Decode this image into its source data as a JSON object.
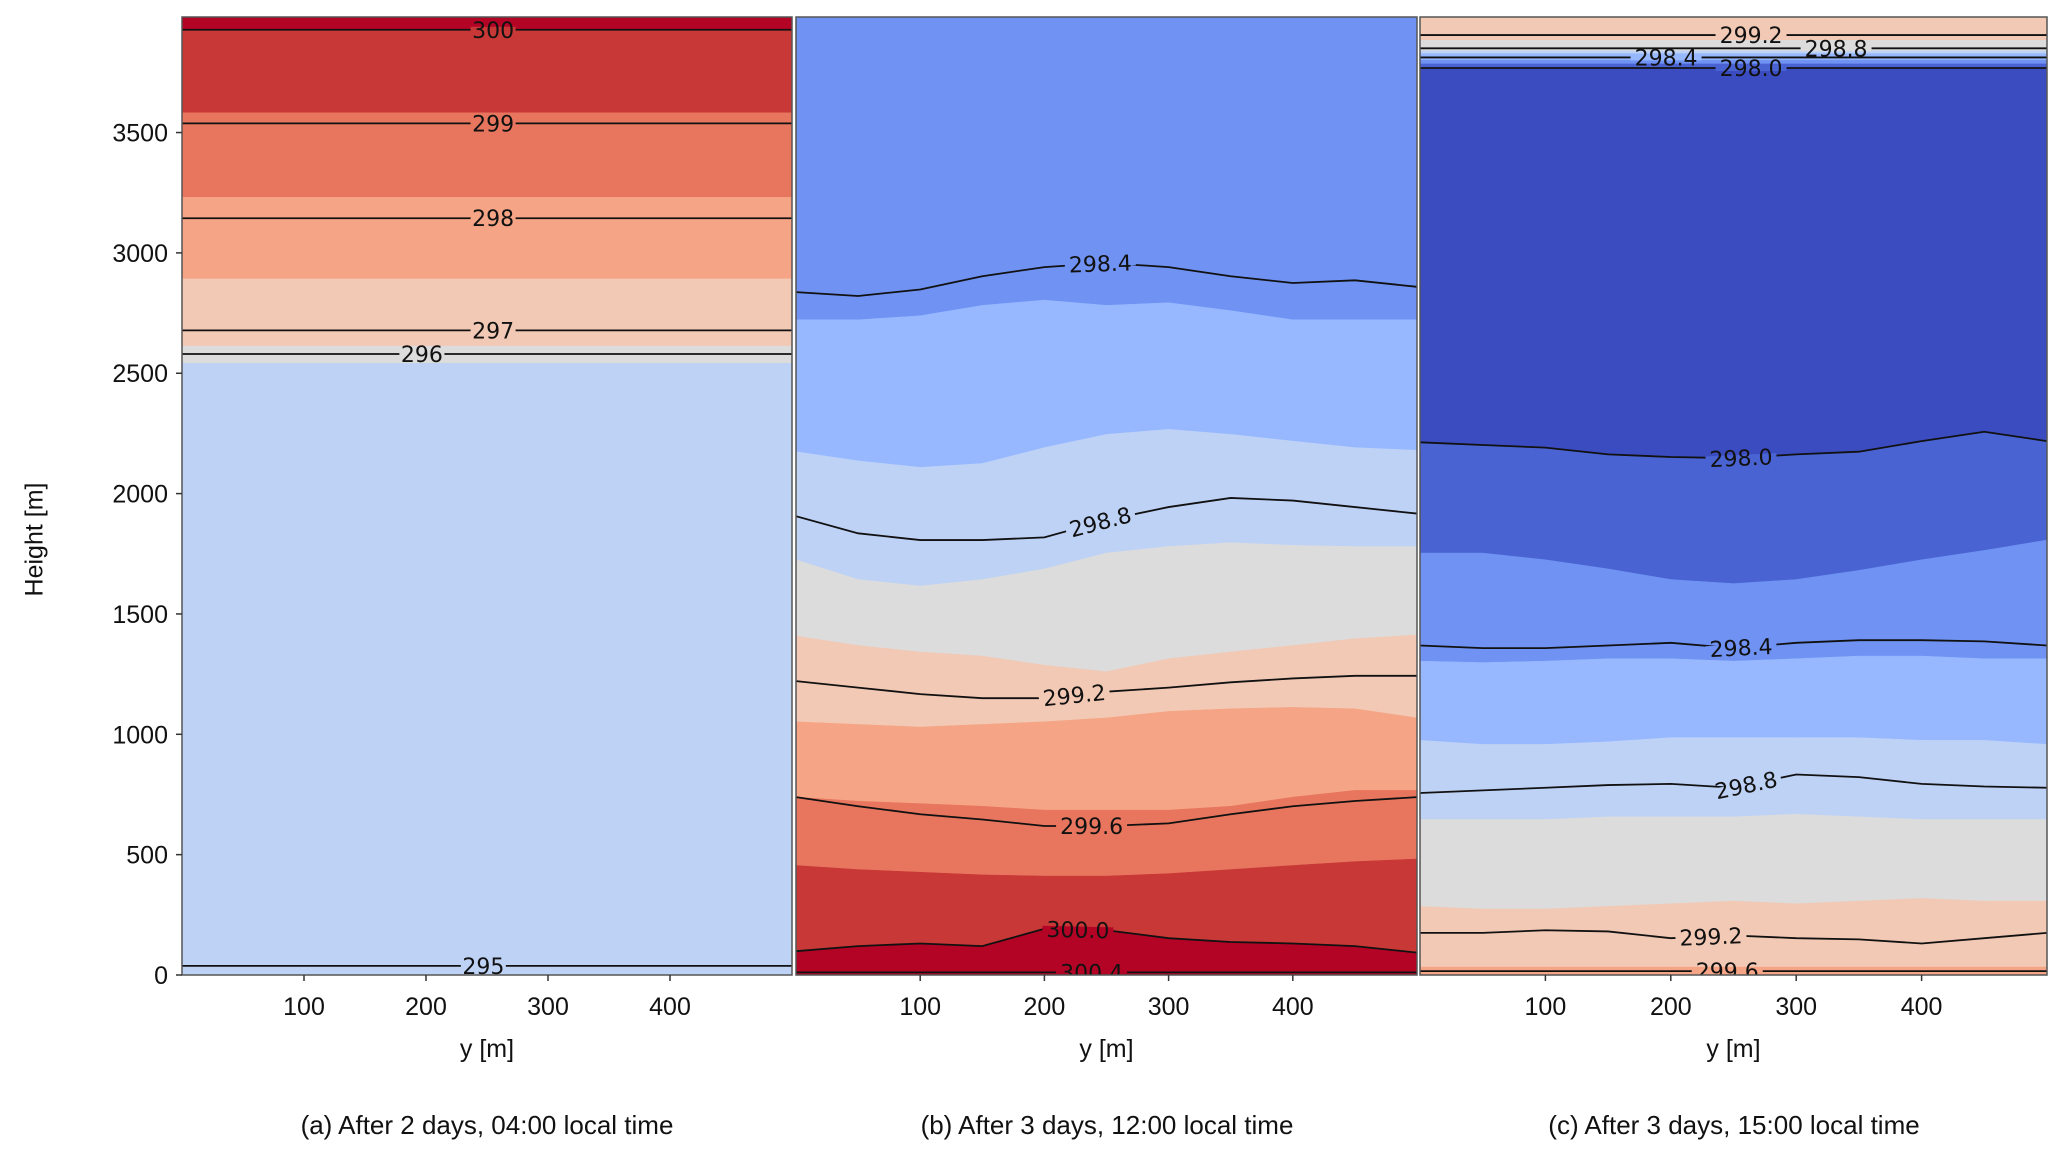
{
  "chart_data": [
    {
      "type": "contour",
      "title": "(a) After 2 days, 04:00 local time",
      "xlabel": "y [m]",
      "ylabel": "Height [m]",
      "xlim": [
        0,
        500
      ],
      "ylim": [
        0,
        3980
      ],
      "xticks": [
        100,
        200,
        300,
        400
      ],
      "yticks": [
        0,
        500,
        1000,
        1500,
        2000,
        2500,
        3000,
        3500
      ],
      "x": [
        0,
        50,
        100,
        150,
        200,
        250,
        300,
        350,
        400,
        450,
        500
      ],
      "bands": [
        {
          "color": "#b40426",
          "upper": 3980
        },
        {
          "color": "#c83836",
          "upper": 3927
        },
        {
          "color": "#e8765e",
          "upper": 3582
        },
        {
          "color": "#f5a585",
          "upper": 3231
        },
        {
          "color": "#f2c9b5",
          "upper": 2892
        },
        {
          "color": "#dcdcdc",
          "upper": 2613
        },
        {
          "color": "#bed2f6",
          "upper": 2541
        }
      ],
      "contours": [
        {
          "label": "300",
          "height": 3927,
          "label_x": 255
        },
        {
          "label": "299",
          "height": 3538,
          "label_x": 255
        },
        {
          "label": "298",
          "height": 3144,
          "label_x": 255
        },
        {
          "label": "297",
          "height": 2678,
          "label_x": 255
        },
        {
          "label": "296",
          "height": 2580,
          "label_x": 245
        },
        {
          "label": "295",
          "height": 38,
          "label_x": 247
        }
      ]
    },
    {
      "type": "contour",
      "title": "(b) After 3 days, 12:00 local time",
      "xlabel": "y [m]",
      "xlim": [
        0,
        500
      ],
      "ylim": [
        0,
        3980
      ],
      "xticks": [
        100,
        200,
        300,
        400
      ],
      "x": [
        0,
        50,
        100,
        150,
        200,
        250,
        300,
        350,
        400,
        450,
        500
      ],
      "bands": [
        {
          "color": "#6f92f3",
          "upper": 3980
        },
        {
          "color": "#97b8ff",
          "upper": [
            2722,
            2722,
            2739,
            2782,
            2804,
            2782,
            2793,
            2760,
            2722,
            2722,
            2722
          ]
        },
        {
          "color": "#bed2f6",
          "upper": [
            2174,
            2136,
            2109,
            2125,
            2191,
            2246,
            2267,
            2246,
            2218,
            2191,
            2180
          ]
        },
        {
          "color": "#dcdcdc",
          "upper": [
            1725,
            1643,
            1616,
            1643,
            1687,
            1753,
            1780,
            1796,
            1785,
            1780,
            1780
          ]
        },
        {
          "color": "#f2c9b5",
          "upper": [
            1408,
            1369,
            1342,
            1325,
            1287,
            1260,
            1314,
            1342,
            1369,
            1397,
            1413
          ]
        },
        {
          "color": "#f5a585",
          "upper": [
            1052,
            1041,
            1030,
            1041,
            1052,
            1068,
            1095,
            1106,
            1112,
            1106,
            1068
          ]
        },
        {
          "color": "#e8765e",
          "upper": [
            739,
            722,
            712,
            701,
            685,
            685,
            685,
            701,
            739,
            767,
            767
          ]
        },
        {
          "color": "#c83836",
          "upper": [
            455,
            438,
            427,
            416,
            411,
            411,
            421,
            438,
            455,
            471,
            482
          ]
        },
        {
          "color": "#b40426",
          "upper": [
            99,
            120,
            131,
            120,
            192,
            186,
            153,
            137,
            131,
            120,
            93
          ]
        }
      ],
      "contours": [
        {
          "label": "298.4",
          "height": [
            2837,
            2821,
            2848,
            2903,
            2941,
            2958,
            2941,
            2903,
            2875,
            2886,
            2859
          ],
          "label_x": 245
        },
        {
          "label": "298.8",
          "height": [
            1906,
            1835,
            1807,
            1807,
            1818,
            1890,
            1944,
            1982,
            1971,
            1944,
            1917
          ],
          "label_x": 245
        },
        {
          "label": "299.2",
          "height": [
            1221,
            1194,
            1167,
            1150,
            1150,
            1177,
            1194,
            1216,
            1232,
            1243,
            1243
          ],
          "label_x": 224
        },
        {
          "label": "299.6",
          "height": [
            739,
            701,
            668,
            646,
            619,
            619,
            630,
            668,
            701,
            723,
            739
          ],
          "label_x": 238
        },
        {
          "label": "300.0",
          "height": [
            99,
            120,
            131,
            120,
            192,
            186,
            153,
            137,
            131,
            120,
            93
          ],
          "label_x": 227
        },
        {
          "label": "300.4",
          "height": 11,
          "label_x": 238
        }
      ]
    },
    {
      "type": "contour",
      "title": "(c) After 3 days, 15:00 local time",
      "xlabel": "y [m]",
      "xlim": [
        0,
        500
      ],
      "ylim": [
        0,
        3980
      ],
      "xticks": [
        100,
        200,
        300,
        400
      ],
      "x": [
        0,
        50,
        100,
        150,
        200,
        250,
        300,
        350,
        400,
        450,
        500
      ],
      "bands": [
        {
          "color": "#f2c9b5",
          "upper": 3980
        },
        {
          "color": "#dcdcdc",
          "upper": 3883
        },
        {
          "color": "#bed2f6",
          "upper": 3839
        },
        {
          "color": "#97b8ff",
          "upper": 3828
        },
        {
          "color": "#6f92f3",
          "upper": 3801
        },
        {
          "color": "#4a63d3",
          "upper": 3785
        },
        {
          "color": "#3b4cc0",
          "upper": 3763
        },
        {
          "color": "#4a63d3",
          "upper": [
            2213,
            2202,
            2191,
            2163,
            2152,
            2147,
            2163,
            2174,
            2218,
            2257,
            2218
          ]
        },
        {
          "color": "#6f92f3",
          "upper": [
            1753,
            1753,
            1725,
            1687,
            1643,
            1626,
            1643,
            1681,
            1725,
            1764,
            1807
          ]
        },
        {
          "color": "#97b8ff",
          "upper": [
            1304,
            1298,
            1304,
            1314,
            1314,
            1304,
            1314,
            1325,
            1325,
            1314,
            1314
          ]
        },
        {
          "color": "#bed2f6",
          "upper": [
            975,
            958,
            958,
            969,
            986,
            986,
            986,
            986,
            975,
            975,
            958
          ]
        },
        {
          "color": "#dcdcdc",
          "upper": [
            646,
            646,
            646,
            657,
            657,
            657,
            668,
            657,
            646,
            646,
            646
          ]
        },
        {
          "color": "#f2c9b5",
          "upper": [
            285,
            274,
            274,
            285,
            296,
            307,
            296,
            307,
            318,
            307,
            307
          ]
        },
        {
          "color": "#f5a585",
          "upper": 33
        }
      ],
      "contours": [
        {
          "label": "299.2",
          "height": 3905,
          "label_x": 264
        },
        {
          "label": "298.8",
          "height": 3850,
          "label_x": 264
        },
        {
          "label": "298.4",
          "height": 3812,
          "label_x": 264
        },
        {
          "label": "298.0",
          "height": 3768,
          "label_x": 264
        },
        {
          "label": "298.0",
          "height": [
            2213,
            2202,
            2191,
            2163,
            2152,
            2147,
            2163,
            2174,
            2218,
            2257,
            2218
          ],
          "label_x": 256
        },
        {
          "label": "298.4",
          "height": [
            1369,
            1358,
            1358,
            1369,
            1380,
            1358,
            1380,
            1391,
            1391,
            1386,
            1369
          ],
          "label_x": 256
        },
        {
          "label": "298.8",
          "height": [
            756,
            767,
            778,
            789,
            794,
            778,
            833,
            822,
            794,
            783,
            778
          ],
          "label_x": 260
        },
        {
          "label": "299.2",
          "height": [
            175,
            175,
            186,
            181,
            153,
            164,
            153,
            148,
            131,
            153,
            175
          ],
          "label_x": 232
        },
        {
          "label": "299.6",
          "height": 16,
          "label_x": 245
        }
      ]
    }
  ]
}
